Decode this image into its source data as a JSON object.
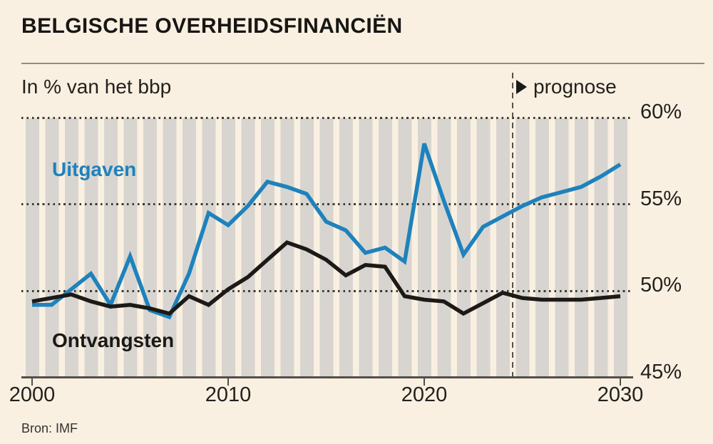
{
  "title": "BELGISCHE OVERHEIDSFINANCIËN",
  "subtitle": "In % van het bbp",
  "forecast": {
    "label": "prognose",
    "arrow_icon": "right-triangle"
  },
  "source": "Bron: IMF",
  "colors": {
    "background": "#F9F0E1",
    "stripe_gray": "#D8D5D0",
    "uitgaven_blue": "#1E82BC",
    "ontvangsten_black": "#1C1A17",
    "grid_dots": "#3C3A35",
    "axis_gray": "#534F49",
    "text": "#23211D"
  },
  "chart_data": {
    "type": "line",
    "title": "Belgische overheidsfinanciën",
    "ylabel": "In % van het bbp",
    "grid": "horizontal-dotted",
    "background_pattern": "vertical-year-stripes",
    "xlim": [
      1999.6,
      2030.6
    ],
    "ylim": [
      45,
      60
    ],
    "forecast_divider_x": 2024.5,
    "x": [
      2000,
      2001,
      2002,
      2003,
      2004,
      2005,
      2006,
      2007,
      2008,
      2009,
      2010,
      2011,
      2012,
      2013,
      2014,
      2015,
      2016,
      2017,
      2018,
      2019,
      2020,
      2021,
      2022,
      2023,
      2024,
      2025,
      2026,
      2027,
      2028,
      2029,
      2030
    ],
    "series": [
      {
        "name": "Uitgaven",
        "color": "#1E82BC",
        "values": [
          49.2,
          49.2,
          50.1,
          51.0,
          49.2,
          52.0,
          48.9,
          48.5,
          51.0,
          54.5,
          53.8,
          54.9,
          56.3,
          56.0,
          55.6,
          54.0,
          53.5,
          52.2,
          52.5,
          51.7,
          58.5,
          55.2,
          52.1,
          53.7,
          54.3,
          54.9,
          55.4,
          55.7,
          56.0,
          56.6,
          57.3
        ]
      },
      {
        "name": "Ontvangsten",
        "color": "#1C1A17",
        "values": [
          49.4,
          49.6,
          49.8,
          49.4,
          49.1,
          49.2,
          49.0,
          48.7,
          49.7,
          49.2,
          50.1,
          50.8,
          51.8,
          52.8,
          52.4,
          51.8,
          50.9,
          51.5,
          51.4,
          49.7,
          49.5,
          49.4,
          48.7,
          49.3,
          49.9,
          49.6,
          49.5,
          49.5,
          49.5,
          49.6,
          49.7
        ]
      }
    ],
    "xticks": [
      {
        "value": 2000,
        "label": "2000"
      },
      {
        "value": 2010,
        "label": "2010"
      },
      {
        "value": 2020,
        "label": "2020"
      },
      {
        "value": 2030,
        "label": "2030"
      }
    ],
    "yticks": [
      {
        "value": 45,
        "label": "45%"
      },
      {
        "value": 50,
        "label": "50%"
      },
      {
        "value": 55,
        "label": "55%"
      },
      {
        "value": 60,
        "label": "60%"
      }
    ]
  }
}
